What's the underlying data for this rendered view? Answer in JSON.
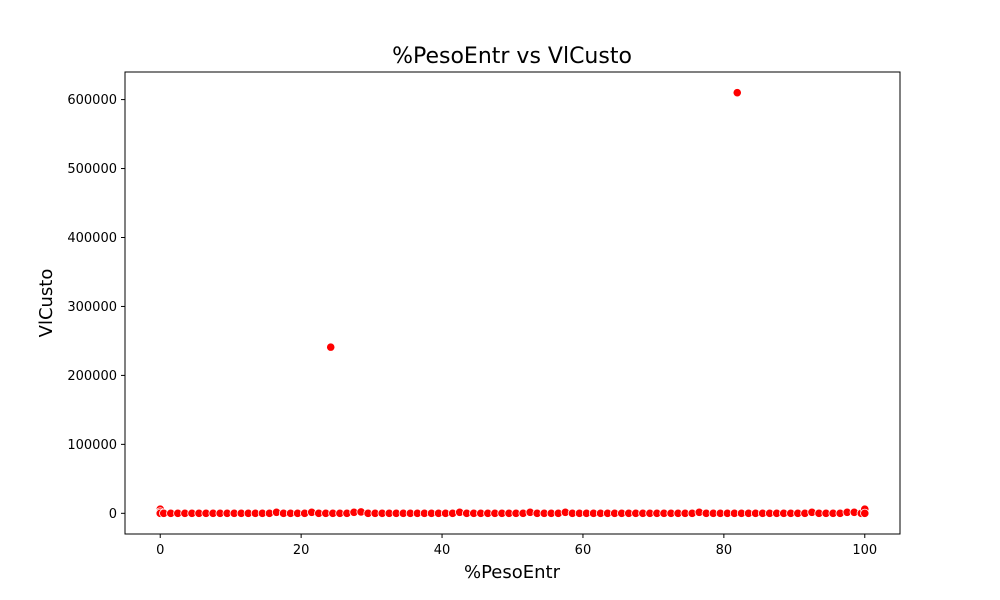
{
  "chart_data": {
    "type": "scatter",
    "title": "%PesoEntr vs VlCusto",
    "xlabel": "%PesoEntr",
    "ylabel": "VlCusto",
    "xlim": [
      -5,
      105
    ],
    "ylim": [
      -30000,
      640000
    ],
    "x_ticks": [
      0,
      20,
      40,
      60,
      80,
      100
    ],
    "y_ticks": [
      0,
      100000,
      200000,
      300000,
      400000,
      500000,
      600000
    ],
    "x_tick_labels": [
      "0",
      "20",
      "40",
      "60",
      "80",
      "100"
    ],
    "y_tick_labels": [
      "0",
      "100000",
      "200000",
      "300000",
      "400000",
      "500000",
      "600000"
    ],
    "grid": false,
    "marker_color": "#ff0000",
    "marker_edge_color": "#ffffff",
    "series": [
      {
        "points": [
          [
            0,
            6000
          ],
          [
            0,
            2000
          ],
          [
            0,
            0
          ],
          [
            0.5,
            0
          ],
          [
            1.5,
            0
          ],
          [
            2.5,
            0
          ],
          [
            3.5,
            0
          ],
          [
            4.5,
            0
          ],
          [
            5.5,
            0
          ],
          [
            6.5,
            0
          ],
          [
            7.5,
            0
          ],
          [
            8.5,
            0
          ],
          [
            9.5,
            0
          ],
          [
            10.5,
            0
          ],
          [
            11.5,
            0
          ],
          [
            12.5,
            0
          ],
          [
            13.5,
            0
          ],
          [
            14.5,
            0
          ],
          [
            15.5,
            0
          ],
          [
            16.5,
            1500
          ],
          [
            17.5,
            0
          ],
          [
            18.5,
            0
          ],
          [
            19.5,
            0
          ],
          [
            20.5,
            0
          ],
          [
            21.5,
            1500
          ],
          [
            22.5,
            0
          ],
          [
            23.5,
            0
          ],
          [
            24.2,
            241000
          ],
          [
            24.5,
            0
          ],
          [
            25.5,
            0
          ],
          [
            26.5,
            0
          ],
          [
            27.5,
            1500
          ],
          [
            28.5,
            2000
          ],
          [
            29.5,
            0
          ],
          [
            30.5,
            0
          ],
          [
            31.5,
            0
          ],
          [
            32.5,
            0
          ],
          [
            33.5,
            0
          ],
          [
            34.5,
            0
          ],
          [
            35.5,
            0
          ],
          [
            36.5,
            0
          ],
          [
            37.5,
            0
          ],
          [
            38.5,
            0
          ],
          [
            39.5,
            0
          ],
          [
            40.5,
            0
          ],
          [
            41.5,
            0
          ],
          [
            42.5,
            1500
          ],
          [
            43.5,
            0
          ],
          [
            44.5,
            0
          ],
          [
            45.5,
            0
          ],
          [
            46.5,
            0
          ],
          [
            47.5,
            0
          ],
          [
            48.5,
            0
          ],
          [
            49.5,
            0
          ],
          [
            50.5,
            0
          ],
          [
            51.5,
            0
          ],
          [
            52.5,
            1500
          ],
          [
            53.5,
            0
          ],
          [
            54.5,
            0
          ],
          [
            55.5,
            0
          ],
          [
            56.5,
            0
          ],
          [
            57.5,
            1500
          ],
          [
            58.5,
            0
          ],
          [
            59.5,
            0
          ],
          [
            60.5,
            0
          ],
          [
            61.5,
            0
          ],
          [
            62.5,
            0
          ],
          [
            63.5,
            0
          ],
          [
            64.5,
            0
          ],
          [
            65.5,
            0
          ],
          [
            66.5,
            0
          ],
          [
            67.5,
            0
          ],
          [
            68.5,
            0
          ],
          [
            69.5,
            0
          ],
          [
            70.5,
            0
          ],
          [
            71.5,
            0
          ],
          [
            72.5,
            0
          ],
          [
            73.5,
            0
          ],
          [
            74.5,
            0
          ],
          [
            75.5,
            0
          ],
          [
            76.5,
            1500
          ],
          [
            77.5,
            0
          ],
          [
            78.5,
            0
          ],
          [
            79.5,
            0
          ],
          [
            80.5,
            0
          ],
          [
            81.5,
            0
          ],
          [
            81.9,
            610000
          ],
          [
            82.5,
            0
          ],
          [
            83.5,
            0
          ],
          [
            84.5,
            0
          ],
          [
            85.5,
            0
          ],
          [
            86.5,
            0
          ],
          [
            87.5,
            0
          ],
          [
            88.5,
            0
          ],
          [
            89.5,
            0
          ],
          [
            90.5,
            0
          ],
          [
            91.5,
            0
          ],
          [
            92.5,
            1500
          ],
          [
            93.5,
            0
          ],
          [
            94.5,
            0
          ],
          [
            95.5,
            0
          ],
          [
            96.5,
            0
          ],
          [
            97.5,
            1500
          ],
          [
            98.5,
            1500
          ],
          [
            99.5,
            0
          ],
          [
            100,
            6000
          ],
          [
            100,
            0
          ]
        ]
      }
    ]
  }
}
